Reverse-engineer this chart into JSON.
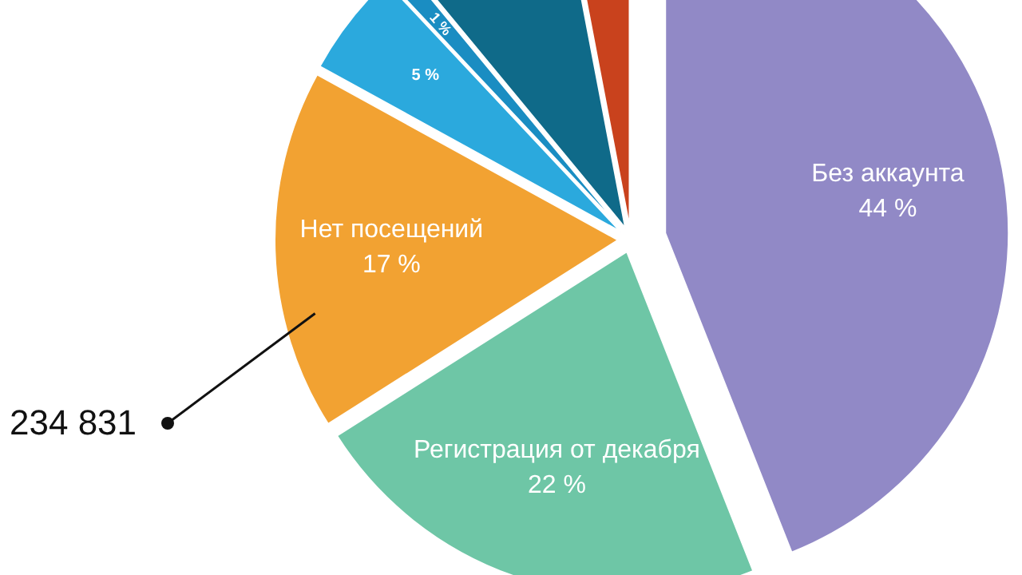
{
  "chart_data": {
    "type": "pie",
    "categories": [
      "Без аккаунта",
      "Регистрация от декабря",
      "Нет посещений",
      null,
      null,
      null,
      null
    ],
    "values": [
      44,
      22,
      17,
      5,
      1,
      8,
      3
    ],
    "value_labels": [
      "44 %",
      "22 %",
      "17 %",
      "5 %",
      "1 %",
      null,
      null
    ],
    "colors": [
      "#9189c6",
      "#6ec6a6",
      "#f2a232",
      "#2ba9dd",
      "#1a8dc2",
      "#0f6a89",
      "#c9421d"
    ],
    "annotations": [
      "234 831"
    ]
  }
}
